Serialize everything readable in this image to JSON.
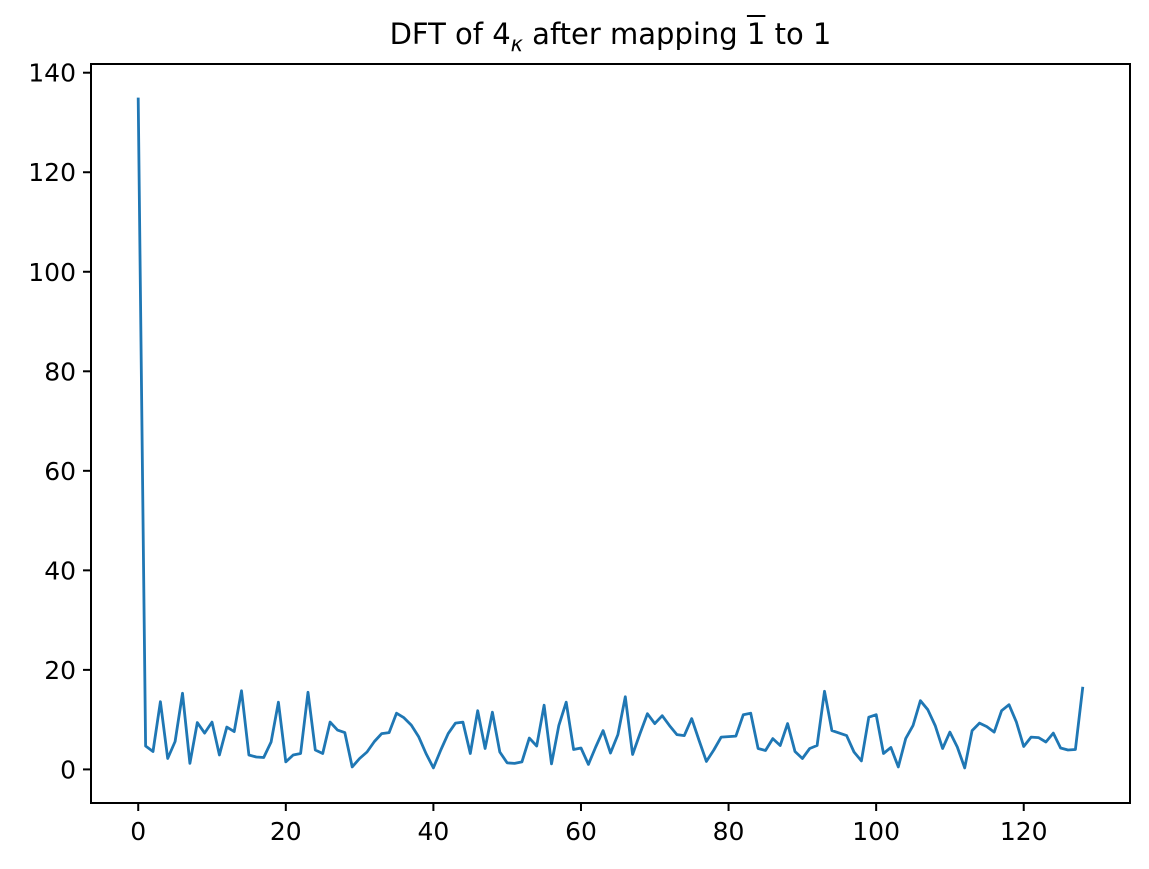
{
  "title": {
    "prefix": "DFT of 4",
    "subscript": "κ",
    "middle": " after mapping ",
    "overlined": "1",
    "suffix": " to 1"
  },
  "chart_data": {
    "type": "line",
    "title": "DFT of 4κ after mapping 1̄ to 1",
    "xlabel": "",
    "ylabel": "",
    "x_start": 0,
    "x_step": 1,
    "values": [
      135,
      4.7,
      3.6,
      13.6,
      2.2,
      5.6,
      15.3,
      1.2,
      9.4,
      7.3,
      9.5,
      2.9,
      8.5,
      7.6,
      15.8,
      2.9,
      2.5,
      2.4,
      5.5,
      13.5,
      1.5,
      2.9,
      3.2,
      15.5,
      3.9,
      3.2,
      9.5,
      7.9,
      7.4,
      0.5,
      2.2,
      3.5,
      5.6,
      7.2,
      7.4,
      11.3,
      10.4,
      8.9,
      6.6,
      3.2,
      0.3,
      3.9,
      7.2,
      9.3,
      9.5,
      3.2,
      11.8,
      4.2,
      11.5,
      3.5,
      1.3,
      1.2,
      1.5,
      6.3,
      4.7,
      12.9,
      1.1,
      8.8,
      13.5,
      4.0,
      4.3,
      1.0,
      4.5,
      7.8,
      3.3,
      7.0,
      14.6,
      3.0,
      7.2,
      11.2,
      9.2,
      10.8,
      8.8,
      7.0,
      6.8,
      10.2,
      5.8,
      1.6,
      3.9,
      6.5,
      6.6,
      6.7,
      11.0,
      11.3,
      4.2,
      3.8,
      6.2,
      4.8,
      9.2,
      3.6,
      2.2,
      4.2,
      4.8,
      15.7,
      7.8,
      7.3,
      6.8,
      3.5,
      1.7,
      10.5,
      11.0,
      3.2,
      4.4,
      0.5,
      6.2,
      8.8,
      13.8,
      12.0,
      8.8,
      4.2,
      7.5,
      4.5,
      0.3,
      7.8,
      9.3,
      8.6,
      7.5,
      11.8,
      13.0,
      9.5,
      4.6,
      6.5,
      6.4,
      5.5,
      7.3,
      4.3,
      3.9,
      4.0,
      16.6
    ],
    "xticks": [
      0,
      20,
      40,
      60,
      80,
      100,
      120
    ],
    "yticks": [
      0,
      20,
      40,
      60,
      80,
      100,
      120,
      140
    ],
    "xlim": [
      -6.4,
      134.4
    ],
    "ylim": [
      -6.75,
      141.75
    ],
    "grid": false,
    "legend": null,
    "line_color": "#1f77b4",
    "axis_color": "#000000",
    "background_color": "#ffffff"
  }
}
